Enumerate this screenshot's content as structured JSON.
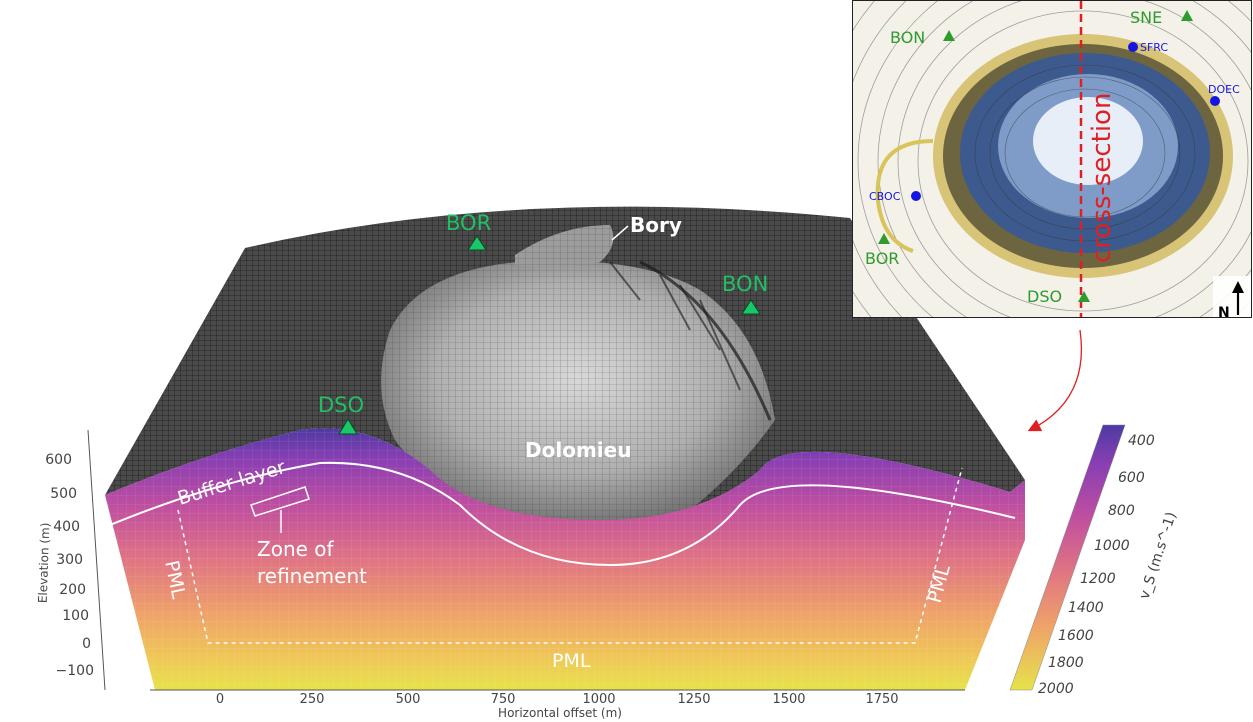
{
  "main_labels": {
    "bory": "Bory",
    "dolomieu": "Dolomieu",
    "buffer_layer": "Buffer layer",
    "zone_of_refinement_line1": "Zone of",
    "zone_of_refinement_line2": "refinement",
    "pml_left": "PML",
    "pml_right": "PML",
    "pml_bottom": "PML"
  },
  "stations_main": [
    "BOR",
    "BON",
    "DSO"
  ],
  "axes": {
    "xlabel": "Horizontal offset (m)",
    "ylabel": "Elevation (m)",
    "x_ticks": [
      "0",
      "250",
      "500",
      "750",
      "1000",
      "1250",
      "1500",
      "1750"
    ],
    "y_ticks": [
      "600",
      "500",
      "400",
      "300",
      "200",
      "100",
      "0",
      "−100"
    ]
  },
  "colorbar": {
    "label": "v_S (m.s^-1)",
    "ticks": [
      "400",
      "600",
      "800",
      "1000",
      "1200",
      "1400",
      "1600",
      "1800",
      "2000"
    ],
    "range": [
      400,
      2000
    ],
    "colors": [
      "#5b3fa8",
      "#8a3fb3",
      "#b84aa6",
      "#d66a8f",
      "#ec8f74",
      "#f4b45f",
      "#e9df4e"
    ]
  },
  "inset": {
    "stations": [
      "BON",
      "SNE",
      "BOR",
      "DSO"
    ],
    "seismometers": [
      "SFRC",
      "DOEC",
      "CBOC"
    ],
    "section_label": "cross-section",
    "north_label": "N",
    "station_color": "#2e9b2e",
    "seismometer_color": "#1515e0",
    "section_color": "#e02020"
  },
  "colors": {
    "station_main": "#19c76a",
    "station_main_text": "#22c064"
  }
}
